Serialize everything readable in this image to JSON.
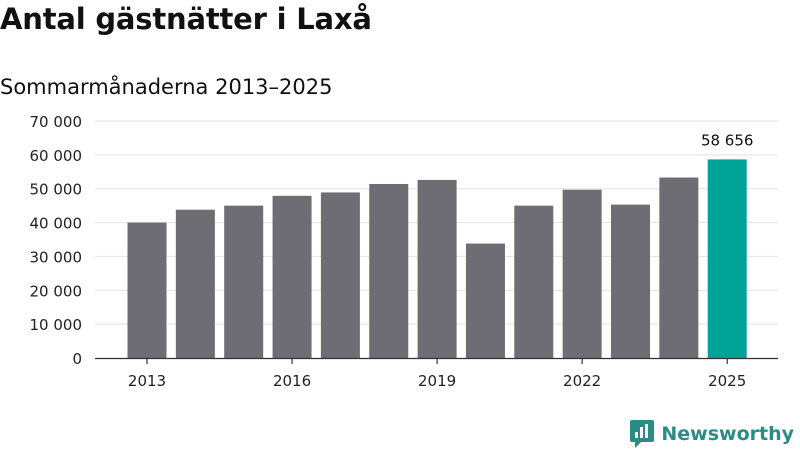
{
  "header": {
    "title": "Antal gästnätter i Laxå",
    "subtitle": "Sommarmånaderna 2013–2025"
  },
  "brand": {
    "name": "Newsworthy",
    "icon": "newsworthy-logo-icon",
    "color": "#2a8c85"
  },
  "chart_data": {
    "type": "bar",
    "title": "Antal gästnätter i Laxå",
    "subtitle": "Sommarmånaderna 2013–2025",
    "categories": [
      "2013",
      "2014",
      "2015",
      "2016",
      "2017",
      "2018",
      "2019",
      "2020",
      "2021",
      "2022",
      "2023",
      "2024",
      "2025"
    ],
    "values": [
      40000,
      43800,
      45000,
      47900,
      48900,
      51400,
      52600,
      33800,
      45000,
      49700,
      45300,
      53300,
      58656
    ],
    "x_tick_labels": [
      "2013",
      "2016",
      "2019",
      "2022",
      "2025"
    ],
    "y_ticks": [
      0,
      10000,
      20000,
      30000,
      40000,
      50000,
      60000,
      70000
    ],
    "y_tick_labels": [
      "0",
      "10 000",
      "20 000",
      "30 000",
      "40 000",
      "50 000",
      "60 000",
      "70 000"
    ],
    "ylim": [
      0,
      70000
    ],
    "data_labels": [
      {
        "category": "2025",
        "label": "58 656"
      }
    ],
    "highlight_category": "2025",
    "colors": {
      "bar": "#6e6d73",
      "highlight": "#00a398",
      "grid": "#e2e2e2",
      "axis": "#333333"
    },
    "grid": true,
    "legend": "none"
  }
}
